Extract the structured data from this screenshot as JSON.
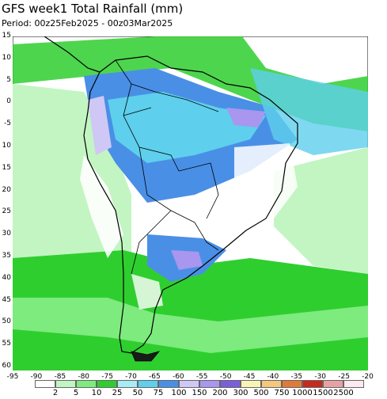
{
  "header": {
    "title": "GFS week1 Total Rainfall (mm)",
    "period": "Period: 00z25Feb2025 - 00z03Mar2025"
  },
  "map": {
    "lat_ticks": [
      "15",
      "10",
      "5",
      "0",
      "-5",
      "10",
      "15",
      "20",
      "25",
      "30",
      "35",
      "40",
      "45",
      "50",
      "55",
      "60"
    ],
    "lon_ticks": [
      "-95",
      "-90",
      "-85",
      "-80",
      "-75",
      "-70",
      "-65",
      "-60",
      "-55",
      "-50",
      "-45",
      "-40",
      "-35",
      "-30",
      "-25",
      "-20"
    ],
    "background_color": "#ffffff",
    "coast_color": "#000000"
  },
  "colorbar": {
    "labels": [
      "2",
      "5",
      "10",
      "25",
      "50",
      "75",
      "100",
      "150",
      "200",
      "300",
      "500",
      "750",
      "1000",
      "1500",
      "2500"
    ],
    "colors": [
      "#ffffff",
      "#c2f5c2",
      "#7deb7d",
      "#2fce2f",
      "#a8ecf6",
      "#5ecfec",
      "#4a8fe6",
      "#cfc7f5",
      "#a896ef",
      "#7a5fd8",
      "#fbf3b5",
      "#f4c77c",
      "#e07a3a",
      "#c62a1e",
      "#e7a1a1",
      "#ffe9f0"
    ]
  }
}
